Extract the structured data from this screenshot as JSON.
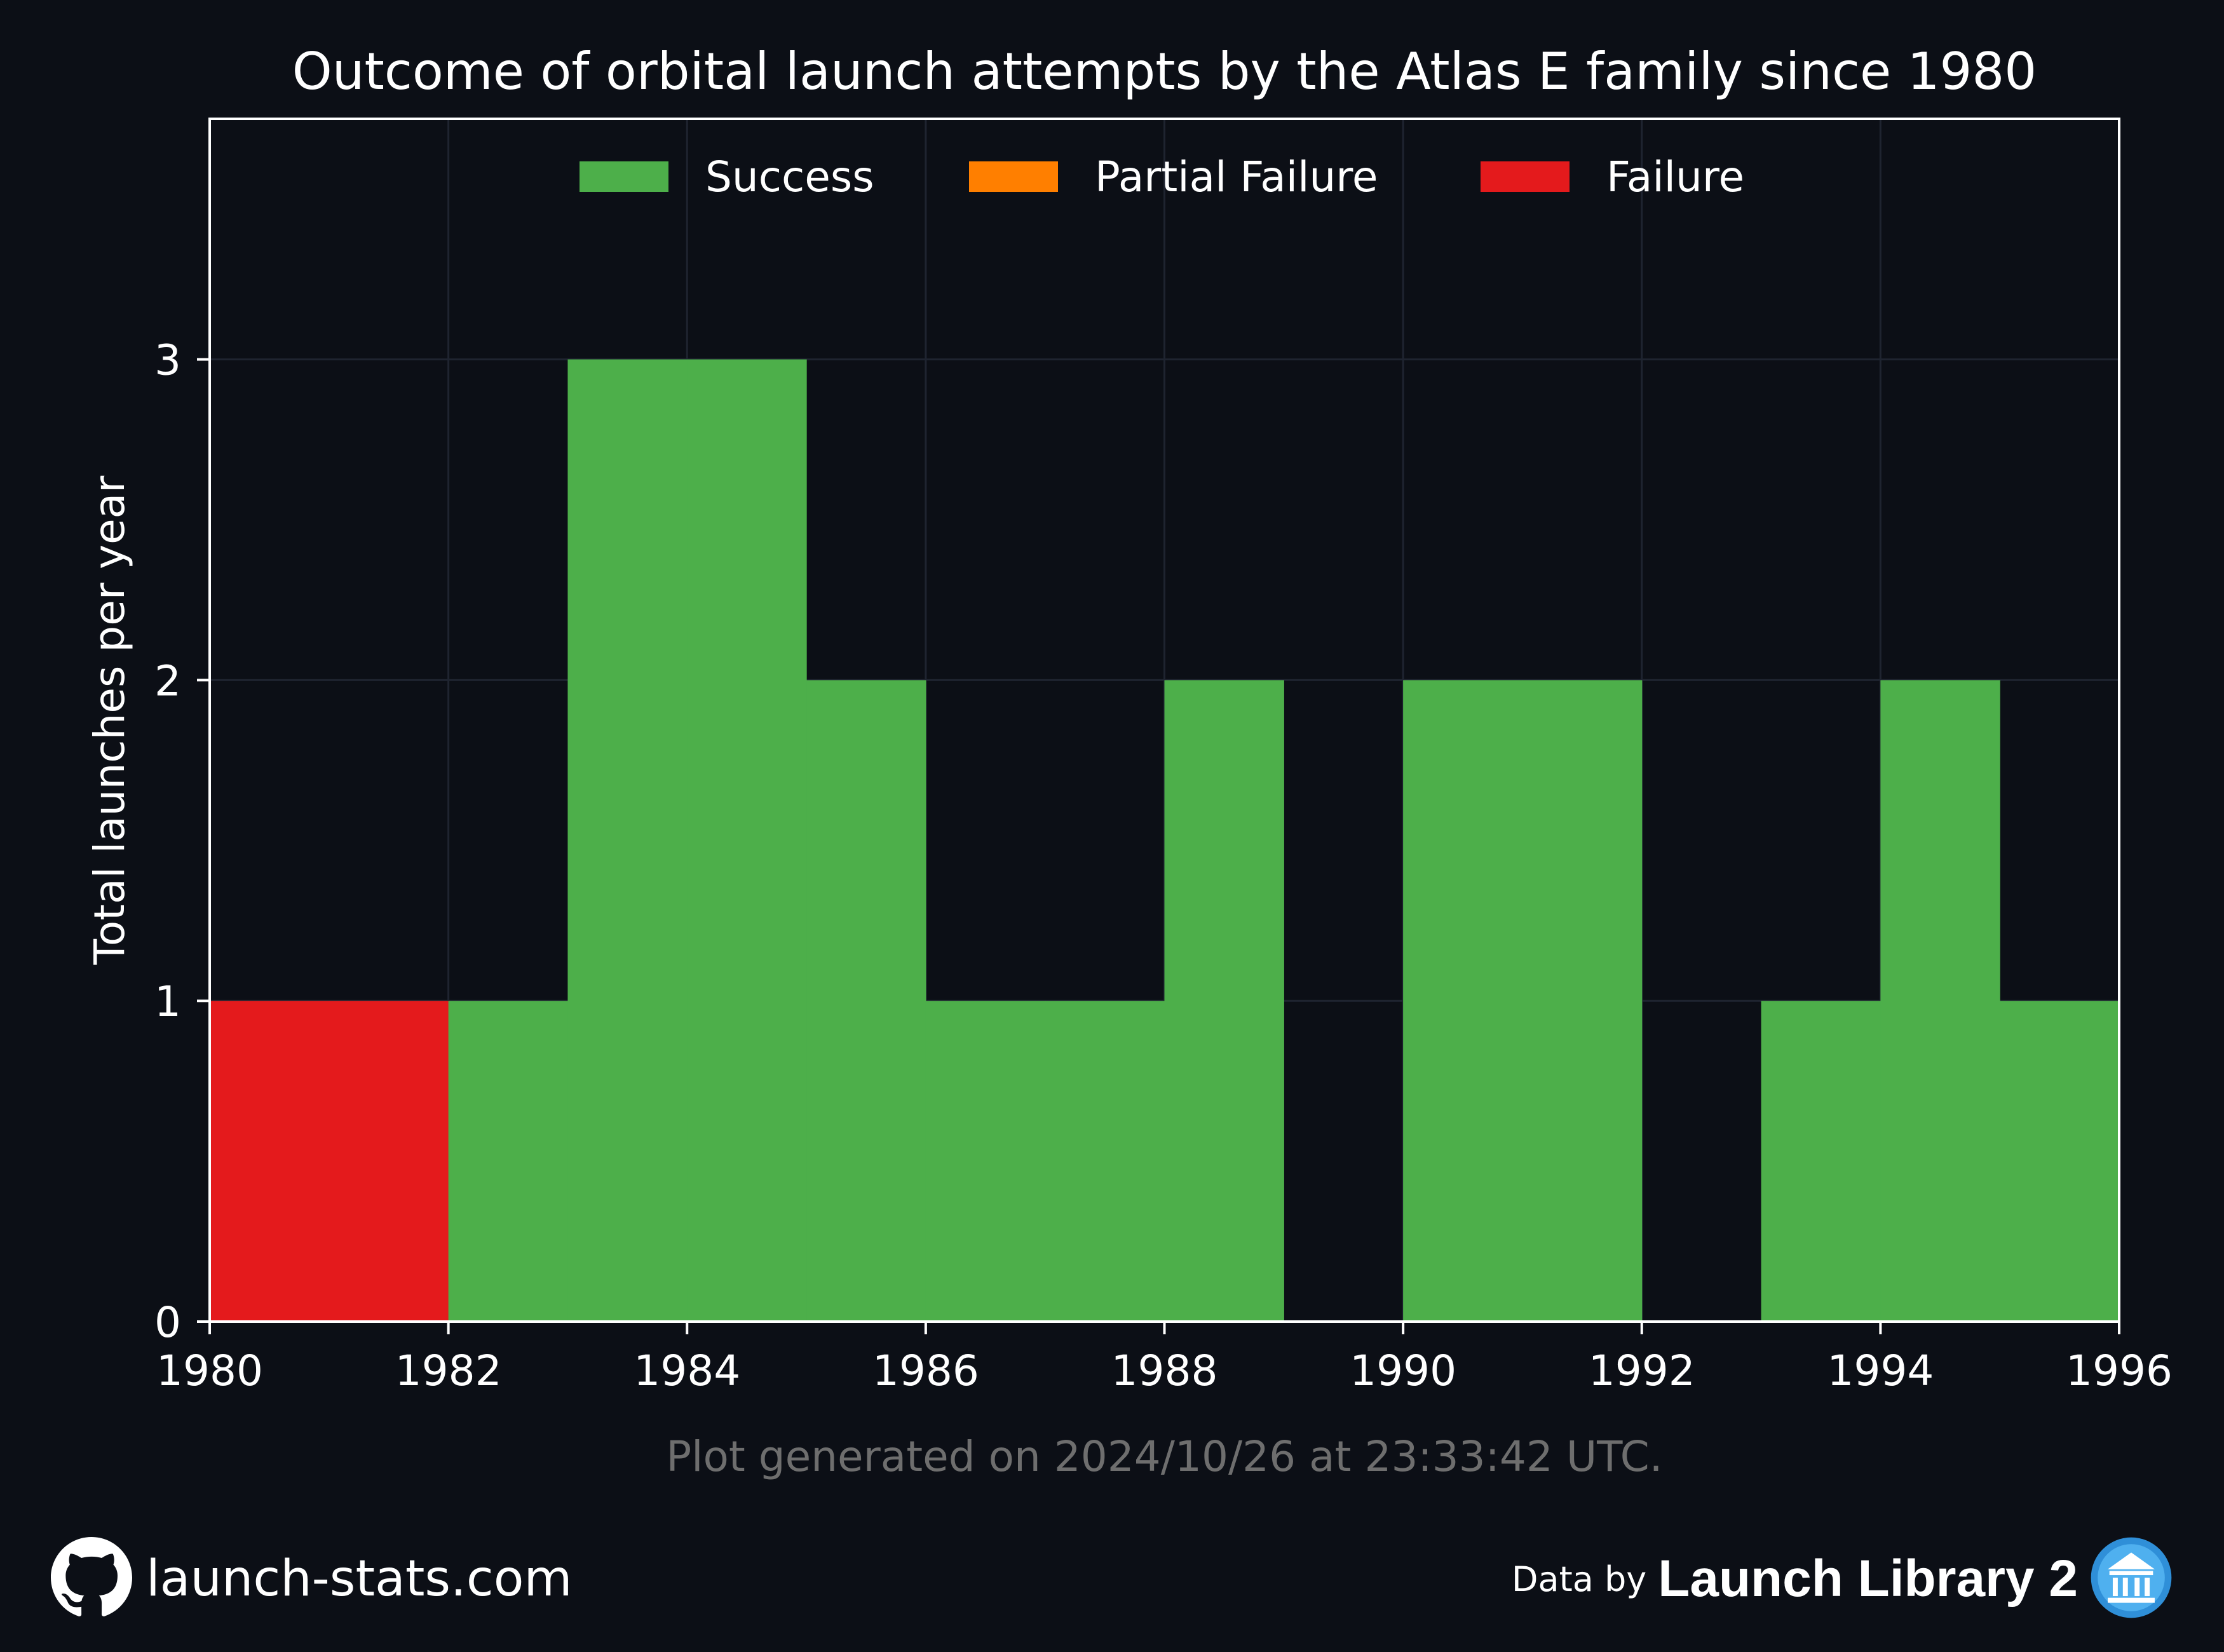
{
  "chart_data": {
    "type": "bar",
    "title": "Outcome of orbital launch attempts by the Atlas E family since 1980",
    "xlabel": "",
    "ylabel": "Total launches per year",
    "xlim": [
      1980,
      1996
    ],
    "ylim": [
      0,
      3.75
    ],
    "x_ticks": [
      "1980",
      "1982",
      "1984",
      "1986",
      "1988",
      "1990",
      "1992",
      "1994",
      "1996"
    ],
    "y_ticks": [
      "0",
      "1",
      "2",
      "3"
    ],
    "grid": true,
    "stacked": true,
    "legend_position": "top-center",
    "bins": [
      1980,
      1981,
      1982,
      1983,
      1984,
      1985,
      1986,
      1987,
      1988,
      1989,
      1990,
      1991,
      1992,
      1993,
      1994,
      1995
    ],
    "series": [
      {
        "name": "Success",
        "color": "#4daf4a",
        "values": [
          0,
          0,
          1,
          3,
          3,
          2,
          1,
          1,
          2,
          0,
          2,
          2,
          0,
          1,
          2,
          1
        ]
      },
      {
        "name": "Partial Failure",
        "color": "#ff7f00",
        "values": [
          0,
          0,
          0,
          0,
          0,
          0,
          0,
          0,
          0,
          0,
          0,
          0,
          0,
          0,
          0,
          0
        ]
      },
      {
        "name": "Failure",
        "color": "#e41a1c",
        "values": [
          1,
          1,
          0,
          0,
          0,
          0,
          0,
          0,
          0,
          0,
          0,
          0,
          0,
          0,
          0,
          0
        ]
      }
    ]
  },
  "footnote": "Plot generated on 2024/10/26 at 23:33:42 UTC.",
  "footer": {
    "site": "launch-stats.com",
    "data_by": "Data by",
    "provider": "Launch Library 2",
    "github_icon": "github-icon",
    "provider_icon": "launch-library-icon"
  },
  "colors": {
    "background": "#0c0f16",
    "axes": "#ffffff",
    "grid": "#1f2430",
    "footnote": "#6e6e6e"
  }
}
